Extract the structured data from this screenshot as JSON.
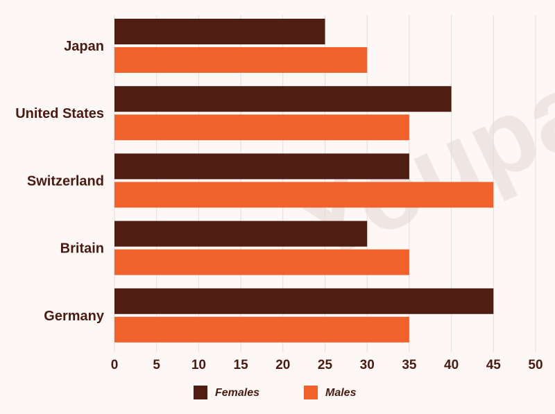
{
  "chart_data": {
    "type": "bar",
    "orientation": "horizontal",
    "title": "",
    "xlabel": "",
    "ylabel": "",
    "categories": [
      "Japan",
      "United States",
      "Switzerland",
      "Britain",
      "Germany"
    ],
    "series": [
      {
        "name": "Females",
        "values": [
          25,
          40,
          35,
          30,
          45
        ]
      },
      {
        "name": "Males",
        "values": [
          30,
          35,
          45,
          35,
          35
        ]
      }
    ],
    "xlim": [
      0,
      50
    ],
    "xticks": [
      "0",
      "5",
      "10",
      "15",
      "20",
      "25",
      "30",
      "35",
      "40",
      "45",
      "50"
    ],
    "grid": true,
    "legend_position": "bottom",
    "colors": {
      "Females": "#4f1d11",
      "Males": "#f0612b",
      "background": "#fdf7f5",
      "text": "#4a1a10"
    },
    "watermark": "Youpass"
  }
}
